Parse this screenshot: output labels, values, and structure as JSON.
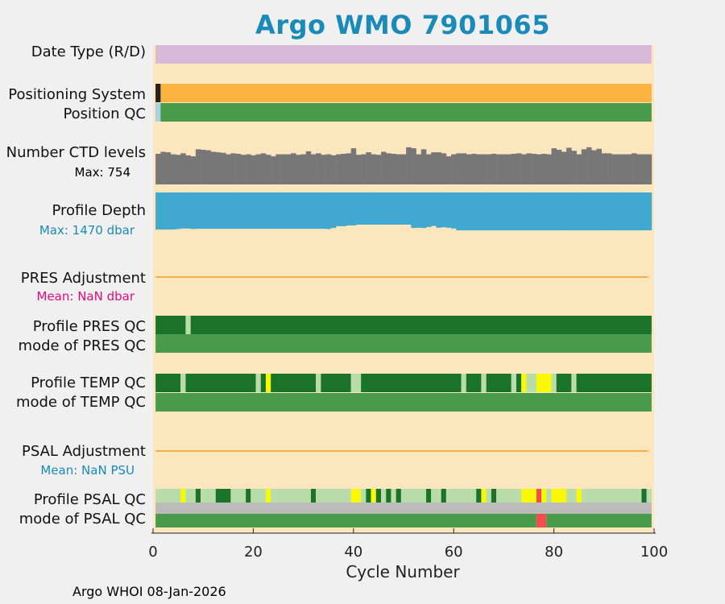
{
  "title": "Argo WMO 7901065",
  "footer": "Argo WHOI 08-Jan-2026",
  "colors": {
    "background": "#f0f0f0",
    "panel": "#fce6bd",
    "title": "#1a8ab8",
    "date_type": "#dab8da",
    "positioning": "#fcb440",
    "positioning_first": "#222222",
    "qc_good": "#1a7328",
    "qc_mode": "#4a9b49",
    "qc_probably_good": "#b8dcaa",
    "qc_probably_bad": "#f8f804",
    "qc_bad": "#f54c4c",
    "qc_missing": "#bbbbbb",
    "ctd": "#777777",
    "depth": "#41a8cf",
    "adjustment_line": "#f5b048",
    "pink_text": "#e3097e",
    "blue_text": "#1a8ab8"
  },
  "chart_data": {
    "type": "table",
    "xlabel": "Cycle Number",
    "xlim": [
      0,
      100
    ],
    "xticks": [
      0,
      20,
      40,
      60,
      80,
      100
    ],
    "rows": [
      {
        "key": "date_type",
        "label": "Date Type (R/D)"
      },
      {
        "key": "positioning",
        "label": "Positioning System"
      },
      {
        "key": "position_qc",
        "label": "Position QC"
      },
      {
        "key": "ctd",
        "label": "Number CTD levels",
        "sublabel": "Max: 754"
      },
      {
        "key": "depth",
        "label": "Profile Depth",
        "sublabel": "Max: 1470 dbar"
      },
      {
        "key": "pres_adj",
        "label": "PRES Adjustment",
        "sublabel": "Mean:  NaN dbar"
      },
      {
        "key": "pres_qc",
        "label": "Profile PRES QC"
      },
      {
        "key": "pres_mode",
        "label": "mode of PRES QC"
      },
      {
        "key": "temp_qc",
        "label": "Profile TEMP QC"
      },
      {
        "key": "temp_mode",
        "label": "mode of TEMP QC"
      },
      {
        "key": "psal_adj",
        "label": "PSAL Adjustment",
        "sublabel": "Mean:  NaN PSU"
      },
      {
        "key": "psal_qc",
        "label": "Profile PSAL QC"
      },
      {
        "key": "psal_mode",
        "label": "mode of PSAL QC"
      }
    ],
    "cycles": [
      1,
      99
    ],
    "date_type": "R",
    "positioning_first_cycle_other": 1,
    "ctd_levels_max": 754,
    "ctd_levels": [
      610,
      650,
      640,
      600,
      590,
      620,
      580,
      560,
      700,
      690,
      680,
      650,
      640,
      630,
      600,
      620,
      610,
      590,
      600,
      580,
      600,
      620,
      590,
      560,
      600,
      600,
      600,
      620,
      590,
      600,
      660,
      600,
      620,
      590,
      600,
      580,
      600,
      610,
      620,
      720,
      590,
      600,
      640,
      600,
      590,
      650,
      620,
      610,
      600,
      600,
      740,
      720,
      600,
      700,
      600,
      640,
      640,
      620,
      560,
      600,
      620,
      620,
      600,
      610,
      600,
      600,
      600,
      610,
      600,
      600,
      600,
      610,
      620,
      600,
      620,
      610,
      600,
      610,
      600,
      720,
      690,
      650,
      730,
      670,
      600,
      700,
      740,
      680,
      710,
      620,
      620,
      600,
      600,
      600,
      600,
      620,
      600,
      600,
      600
    ],
    "profile_depth_max_dbar": 1470,
    "profile_depth_dbar": [
      1440,
      1440,
      1440,
      1440,
      1420,
      1400,
      1400,
      1420,
      1410,
      1410,
      1410,
      1410,
      1410,
      1410,
      1410,
      1410,
      1410,
      1410,
      1410,
      1410,
      1410,
      1410,
      1410,
      1410,
      1410,
      1410,
      1410,
      1410,
      1410,
      1410,
      1410,
      1410,
      1410,
      1410,
      1420,
      1380,
      1310,
      1310,
      1280,
      1280,
      1250,
      1250,
      1250,
      1250,
      1250,
      1250,
      1250,
      1250,
      1250,
      1250,
      1250,
      1380,
      1370,
      1380,
      1340,
      1300,
      1370,
      1350,
      1370,
      1400,
      1470,
      1470,
      1470,
      1470,
      1470,
      1470,
      1470,
      1470,
      1470,
      1470,
      1470,
      1470,
      1470,
      1470,
      1470,
      1470,
      1470,
      1470,
      1470,
      1470,
      1470,
      1470,
      1470,
      1470,
      1470,
      1470,
      1470,
      1470,
      1470,
      1470,
      1470,
      1470,
      1470,
      1470,
      1470,
      1470,
      1470,
      1470,
      1470
    ],
    "pres_adjustment_mean": "NaN dbar",
    "psal_adjustment_mean": "NaN PSU",
    "pres_qc_segments": [
      {
        "from": 1,
        "to": 6,
        "flag": "A"
      },
      {
        "from": 7,
        "to": 7,
        "flag": "B"
      },
      {
        "from": 8,
        "to": 99,
        "flag": "A"
      }
    ],
    "temp_qc_segments": [
      {
        "from": 1,
        "to": 5,
        "flag": "A"
      },
      {
        "from": 6,
        "to": 6,
        "flag": "B"
      },
      {
        "from": 7,
        "to": 20,
        "flag": "A"
      },
      {
        "from": 21,
        "to": 21,
        "flag": "B"
      },
      {
        "from": 22,
        "to": 22,
        "flag": "A"
      },
      {
        "from": 23,
        "to": 23,
        "flag": "E"
      },
      {
        "from": 24,
        "to": 32,
        "flag": "A"
      },
      {
        "from": 33,
        "to": 33,
        "flag": "B"
      },
      {
        "from": 34,
        "to": 39,
        "flag": "A"
      },
      {
        "from": 40,
        "to": 41,
        "flag": "B"
      },
      {
        "from": 42,
        "to": 61,
        "flag": "A"
      },
      {
        "from": 62,
        "to": 62,
        "flag": "B"
      },
      {
        "from": 63,
        "to": 65,
        "flag": "A"
      },
      {
        "from": 66,
        "to": 66,
        "flag": "B"
      },
      {
        "from": 67,
        "to": 71,
        "flag": "A"
      },
      {
        "from": 72,
        "to": 72,
        "flag": "B"
      },
      {
        "from": 73,
        "to": 73,
        "flag": "A"
      },
      {
        "from": 74,
        "to": 74,
        "flag": "E"
      },
      {
        "from": 75,
        "to": 76,
        "flag": "B"
      },
      {
        "from": 77,
        "to": 79,
        "flag": "E"
      },
      {
        "from": 80,
        "to": 80,
        "flag": "B"
      },
      {
        "from": 81,
        "to": 83,
        "flag": "A"
      },
      {
        "from": 84,
        "to": 84,
        "flag": "B"
      },
      {
        "from": 85,
        "to": 99,
        "flag": "A"
      }
    ],
    "psal_qc_segments": [
      {
        "from": 1,
        "to": 5,
        "flag": "B"
      },
      {
        "from": 6,
        "to": 6,
        "flag": "E"
      },
      {
        "from": 7,
        "to": 8,
        "flag": "B"
      },
      {
        "from": 9,
        "to": 9,
        "flag": "A"
      },
      {
        "from": 10,
        "to": 12,
        "flag": "B"
      },
      {
        "from": 13,
        "to": 15,
        "flag": "A"
      },
      {
        "from": 16,
        "to": 18,
        "flag": "B"
      },
      {
        "from": 19,
        "to": 19,
        "flag": "A"
      },
      {
        "from": 20,
        "to": 22,
        "flag": "B"
      },
      {
        "from": 23,
        "to": 23,
        "flag": "E"
      },
      {
        "from": 24,
        "to": 31,
        "flag": "B"
      },
      {
        "from": 32,
        "to": 32,
        "flag": "A"
      },
      {
        "from": 33,
        "to": 39,
        "flag": "B"
      },
      {
        "from": 40,
        "to": 41,
        "flag": "E"
      },
      {
        "from": 42,
        "to": 42,
        "flag": "B"
      },
      {
        "from": 43,
        "to": 43,
        "flag": "A"
      },
      {
        "from": 44,
        "to": 44,
        "flag": "E"
      },
      {
        "from": 45,
        "to": 45,
        "flag": "A"
      },
      {
        "from": 46,
        "to": 46,
        "flag": "B"
      },
      {
        "from": 47,
        "to": 47,
        "flag": "A"
      },
      {
        "from": 48,
        "to": 48,
        "flag": "B"
      },
      {
        "from": 49,
        "to": 49,
        "flag": "A"
      },
      {
        "from": 50,
        "to": 54,
        "flag": "B"
      },
      {
        "from": 55,
        "to": 55,
        "flag": "A"
      },
      {
        "from": 56,
        "to": 57,
        "flag": "B"
      },
      {
        "from": 58,
        "to": 58,
        "flag": "A"
      },
      {
        "from": 59,
        "to": 64,
        "flag": "B"
      },
      {
        "from": 65,
        "to": 65,
        "flag": "A"
      },
      {
        "from": 66,
        "to": 66,
        "flag": "E"
      },
      {
        "from": 67,
        "to": 67,
        "flag": "B"
      },
      {
        "from": 68,
        "to": 68,
        "flag": "A"
      },
      {
        "from": 69,
        "to": 73,
        "flag": "B"
      },
      {
        "from": 74,
        "to": 76,
        "flag": "E"
      },
      {
        "from": 77,
        "to": 77,
        "flag": "D"
      },
      {
        "from": 78,
        "to": 78,
        "flag": "E"
      },
      {
        "from": 79,
        "to": 79,
        "flag": "B"
      },
      {
        "from": 80,
        "to": 82,
        "flag": "E"
      },
      {
        "from": 83,
        "to": 84,
        "flag": "B"
      },
      {
        "from": 85,
        "to": 85,
        "flag": "E"
      },
      {
        "from": 86,
        "to": 97,
        "flag": "B"
      },
      {
        "from": 98,
        "to": 98,
        "flag": "A"
      },
      {
        "from": 99,
        "to": 99,
        "flag": "B"
      }
    ],
    "psal_mode_segments": [
      {
        "from": 1,
        "to": 76,
        "flag": "M"
      },
      {
        "from": 77,
        "to": 78,
        "flag": "D"
      },
      {
        "from": 79,
        "to": 99,
        "flag": "M"
      }
    ]
  }
}
